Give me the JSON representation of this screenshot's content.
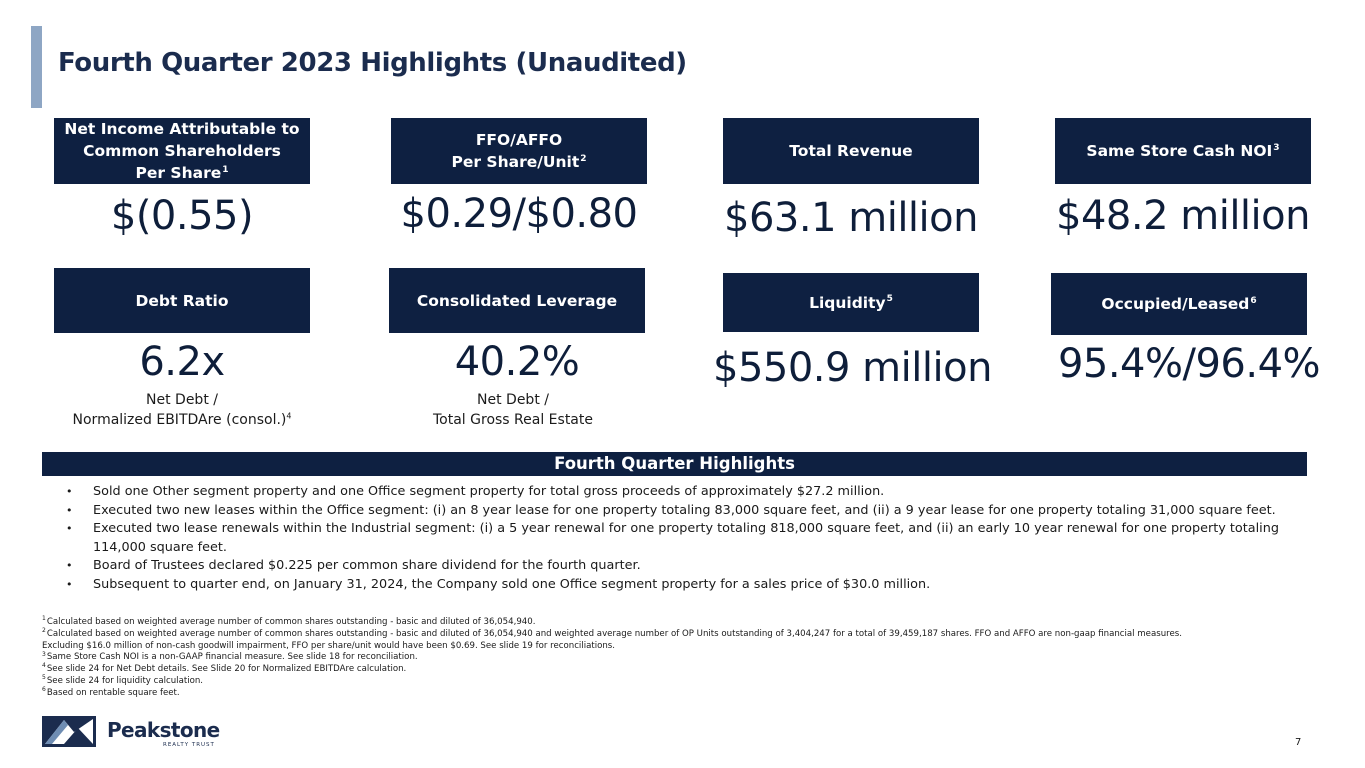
{
  "slide": {
    "title": "Fourth Quarter 2023 Highlights (Unaudited)",
    "page_number": "7"
  },
  "kpis": {
    "net_income": {
      "label_lines": [
        "Net Income Attributable to",
        "Common Shareholders",
        "Per Share"
      ],
      "footnote": "1",
      "value": "$(0.55)"
    },
    "ffo_affo": {
      "label_lines": [
        "FFO/AFFO",
        "Per Share/Unit"
      ],
      "footnote": "2",
      "value": "$0.29/$0.80"
    },
    "total_revenue": {
      "label": "Total Revenue",
      "value": "$63.1 million"
    },
    "same_store_noi": {
      "label": "Same Store Cash NOI",
      "footnote": "3",
      "value": "$48.2 million"
    },
    "debt_ratio": {
      "label": "Debt Ratio",
      "value": "6.2x",
      "sub_line1": "Net Debt /",
      "sub_line2": "Normalized EBITDAre (consol.)",
      "sub_footnote": "4"
    },
    "consolidated_leverage": {
      "label": "Consolidated Leverage",
      "value": "40.2%",
      "sub_line1": "Net Debt /",
      "sub_line2": "Total Gross Real Estate"
    },
    "liquidity": {
      "label": "Liquidity",
      "footnote": "5",
      "value": "$550.9 million"
    },
    "occupied_leased": {
      "label": "Occupied/Leased",
      "footnote": "6",
      "value": "95.4%/96.4%"
    }
  },
  "highlights": {
    "header": "Fourth Quarter Highlights",
    "bullet_glyph": "•",
    "items": [
      "Sold one Other segment property and one Office segment property for total gross proceeds of approximately $27.2 million.",
      "Executed two new leases within the Office segment: (i) an 8 year lease for one property totaling 83,000 square feet, and (ii) a 9 year lease for one property totaling 31,000 square feet.",
      "Executed two lease renewals within the Industrial segment: (i) a 5 year renewal for one property totaling 818,000 square feet, and (ii) an early 10 year renewal for one property totaling 114,000 square feet.",
      "Board of Trustees declared $0.225 per common share dividend for the fourth quarter.",
      "Subsequent to quarter end, on January 31, 2024, the Company sold one Office segment property for a sales price of $30.0 million."
    ]
  },
  "footnotes": [
    {
      "num": "1",
      "text": "Calculated based on weighted average number of common shares outstanding - basic and diluted of 36,054,940."
    },
    {
      "num": "2",
      "text": "Calculated based on weighted average number of common shares outstanding - basic and diluted of 36,054,940 and weighted average number of OP Units outstanding of 3,404,247 for a total of 39,459,187 shares. FFO and AFFO are non-gaap financial measures."
    },
    {
      "num": "",
      "text": "Excluding $16.0 million of non-cash goodwill impairment, FFO per share/unit would have been  $0.69. See slide 19 for reconciliations."
    },
    {
      "num": "3",
      "text": "Same Store Cash NOI is a non-GAAP financial measure. See slide 18 for reconciliation."
    },
    {
      "num": "4",
      "text": "See slide 24 for Net Debt details. See Slide 20 for Normalized EBITDAre calculation."
    },
    {
      "num": "5",
      "text": "See slide 24 for liquidity calculation."
    },
    {
      "num": "6",
      "text": "Based on rentable square feet."
    }
  ],
  "logo": {
    "name": "Peakstone",
    "tagline": "REALTY TRUST",
    "icon": "mountain-logo-icon"
  },
  "colors": {
    "navy": "#0e2041",
    "accent": "#8ea6c4"
  }
}
